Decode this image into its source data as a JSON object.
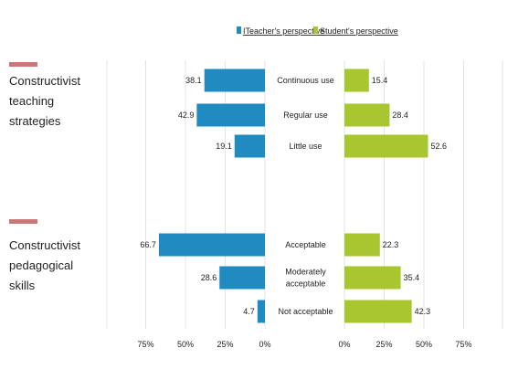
{
  "chart_data": {
    "type": "bar",
    "orientation": "horizontal-diverging",
    "legend": {
      "position": "top",
      "entries": [
        {
          "label": "ITeacher's perspective",
          "color": "#1f8bc0"
        },
        {
          "label": "Student's perspective",
          "color": "#a8c62f"
        }
      ]
    },
    "xticks_left": [
      "75%",
      "50%",
      "25%",
      "0%"
    ],
    "xticks_right": [
      "0%",
      "25%",
      "50%",
      "75%"
    ],
    "xlim": [
      0,
      100
    ],
    "grid": true,
    "groups": [
      {
        "title": "Constructivist teaching strategies",
        "title_lines": [
          "Constructivist",
          "teaching",
          "strategies"
        ],
        "categories": [
          {
            "label_lines": [
              "Continuous use"
            ],
            "teacher": 38.1,
            "student": 15.4,
            "teacher_label": "38.1",
            "student_label": "15.4"
          },
          {
            "label_lines": [
              "Regular use"
            ],
            "teacher": 42.9,
            "student": 28.4,
            "teacher_label": "42.9",
            "student_label": "28.4"
          },
          {
            "label_lines": [
              "Little use"
            ],
            "teacher": 19.1,
            "student": 52.6,
            "teacher_label": "19.1",
            "student_label": "52.6"
          }
        ]
      },
      {
        "title": "Constructivist pedagogical skills",
        "title_lines": [
          "Constructivist",
          "pedagogical",
          "skills"
        ],
        "categories": [
          {
            "label_lines": [
              "Acceptable"
            ],
            "teacher": 66.7,
            "student": 22.3,
            "teacher_label": "66.7",
            "student_label": "22.3"
          },
          {
            "label_lines": [
              "Moderately",
              "acceptable"
            ],
            "teacher": 28.6,
            "student": 35.4,
            "teacher_label": "28.6",
            "student_label": "35.4"
          },
          {
            "label_lines": [
              "Not acceptable"
            ],
            "teacher": 4.7,
            "student": 42.3,
            "teacher_label": "4.7",
            "student_label": "42.3"
          }
        ]
      }
    ]
  },
  "colors": {
    "teacher": "#1f8bc0",
    "student": "#a8c62f",
    "group_marker": "#c87878",
    "grid": "#e3e3e3"
  }
}
